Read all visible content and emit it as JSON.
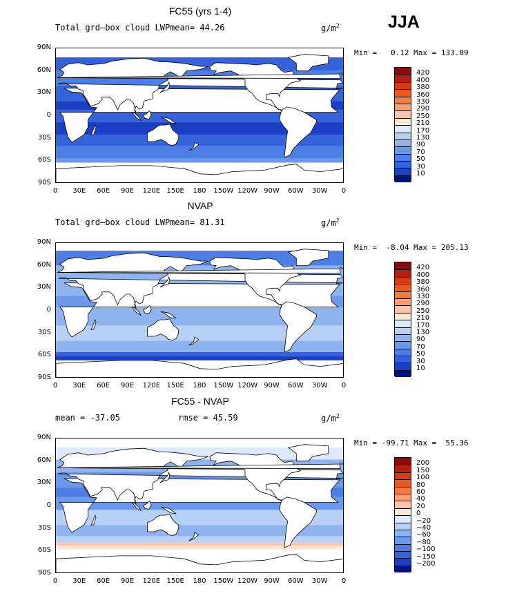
{
  "season": "JJA",
  "unit": "g/m",
  "unit_sup": "2",
  "x_ticks": [
    "0",
    "30E",
    "60E",
    "90E",
    "120E",
    "150E",
    "180",
    "150W",
    "120W",
    "90W",
    "60W",
    "30W",
    "0"
  ],
  "y_ticks": [
    "90N",
    "60N",
    "30N",
    "0",
    "30S",
    "60S",
    "90S"
  ],
  "panels": [
    {
      "title": "FC55 (yrs 1-4)",
      "left_text": "Total grd–box cloud LWP",
      "center_text": "mean=  44.26",
      "minmax": "Min =   0.12 Max = 133.89",
      "levels": [
        "420",
        "400",
        "380",
        "360",
        "330",
        "290",
        "250",
        "210",
        "170",
        "130",
        "90",
        "70",
        "50",
        "30",
        "10"
      ],
      "colors": [
        "#8b0a0a",
        "#b3200f",
        "#d43d12",
        "#ea5a1e",
        "#f57b3f",
        "#fa9f73",
        "#fcc4a8",
        "#fce8d8",
        "#dce9fb",
        "#b7d0f6",
        "#8eb4ef",
        "#6b98ea",
        "#4d7ee6",
        "#3563dc",
        "#1b3fc6",
        "#00137a"
      ]
    },
    {
      "title": "NVAP",
      "left_text": "Total grd–box cloud LWP",
      "center_text": "mean=  81.31",
      "minmax": "Min =  -8.04 Max = 205.13",
      "levels": [
        "420",
        "400",
        "380",
        "360",
        "330",
        "290",
        "250",
        "210",
        "170",
        "130",
        "90",
        "70",
        "50",
        "30",
        "10"
      ],
      "colors": [
        "#8b0a0a",
        "#b3200f",
        "#d43d12",
        "#ea5a1e",
        "#f57b3f",
        "#fa9f73",
        "#fcc4a8",
        "#fce8d8",
        "#dce9fb",
        "#b7d0f6",
        "#8eb4ef",
        "#6b98ea",
        "#4d7ee6",
        "#3563dc",
        "#1b3fc6",
        "#00137a"
      ]
    },
    {
      "title": "FC55 - NVAP",
      "left_text": "mean = -37.05",
      "center_text": "rmse =  45.59",
      "minmax": "Min = -99.71 Max =  55.36",
      "levels": [
        "200",
        "150",
        "100",
        "80",
        "60",
        "40",
        "20",
        "0",
        "−20",
        "−40",
        "−60",
        "−80",
        "−100",
        "−150",
        "−200"
      ],
      "colors": [
        "#8b0a0a",
        "#b3200f",
        "#d43d12",
        "#ea5a1e",
        "#f57b3f",
        "#fa9f73",
        "#fcc4a8",
        "#fce8d8",
        "#dce9fb",
        "#b7d0f6",
        "#8eb4ef",
        "#6b98ea",
        "#4d7ee6",
        "#3563dc",
        "#1b3fc6",
        "#00137a"
      ]
    }
  ]
}
